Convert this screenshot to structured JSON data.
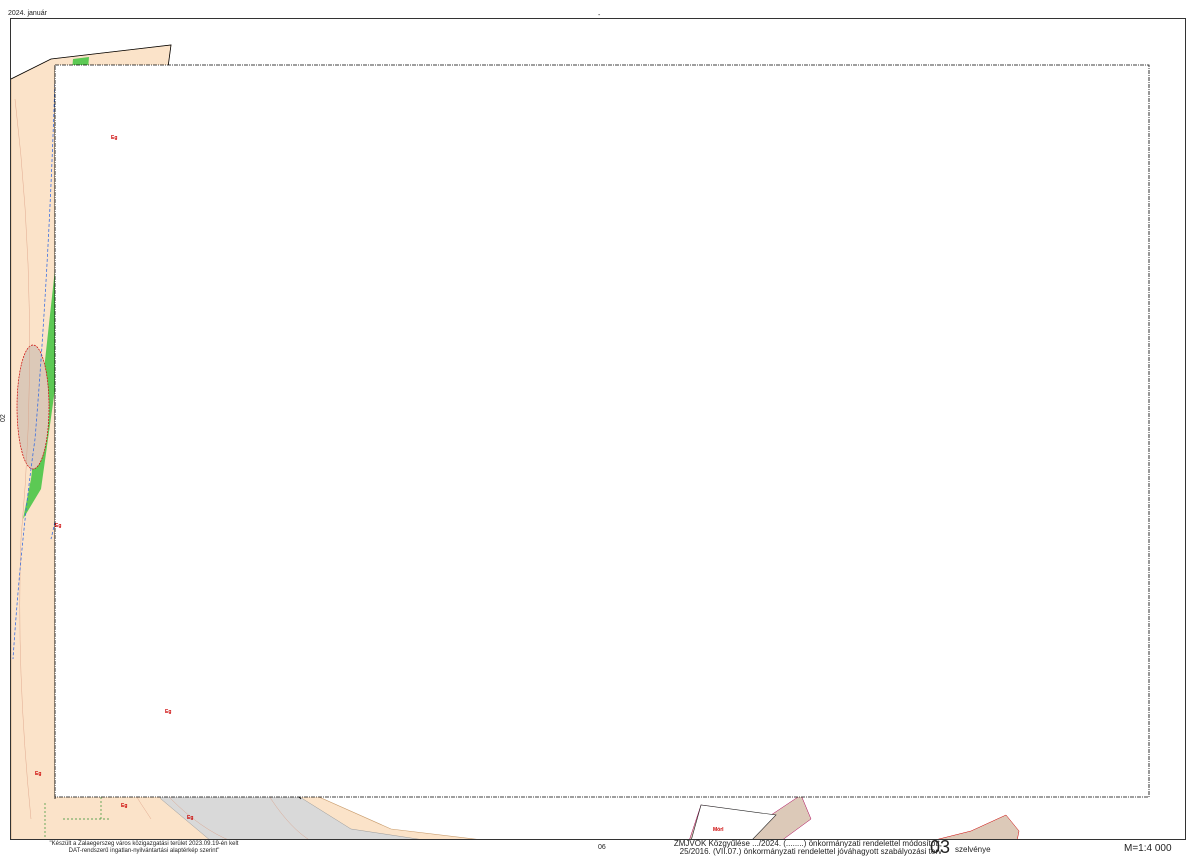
{
  "header": {
    "date": "2024. január",
    "center_mark": "-",
    "sheet_left": "02"
  },
  "map": {
    "zone_labels": [
      "Eg",
      "Eg",
      "Eg",
      "Eg",
      "Eg",
      "Eg",
      "Mórl"
    ],
    "colors": {
      "frame": "#333333",
      "plan_boundary": "#000000",
      "orchard_zone": "#fbe3c9",
      "forest_green": "#3fc43f",
      "water_blue": "#3b6fe0",
      "road_grey": "#d9d9d9",
      "brown_zone": "#dcc9b8",
      "contour": "#d99b80",
      "label_red": "#cc0000"
    },
    "icons": [
      "road-line",
      "contour-lines",
      "watercourse-line"
    ]
  },
  "footer": {
    "credit_line1": "\"Készült a Zalaegerszeg város közigazgatási terület 2023.09.19-én kelt",
    "credit_line2": "DAT-rendszerű ingatlan-nyilvántartási alaptérkép szerint\"",
    "sheet_bottom": "06",
    "decree_line1": "ZMJVÖK Közgyűlése .../2024. (........) önkormányzati rendelettel módosított,",
    "decree_line2": "25/2016. (VII.07.) önkormányzati rendelettel jóváhagyott szabályozási terv",
    "sheet_number": "03",
    "sheet_suffix": "szelvénye",
    "scale": "M=1:4 000"
  }
}
